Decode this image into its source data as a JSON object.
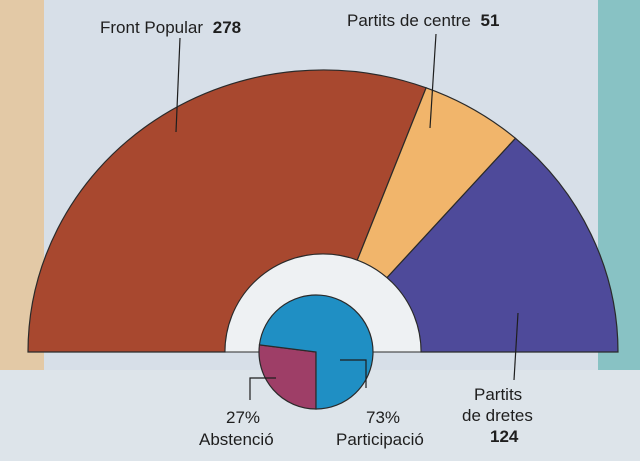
{
  "chart_data": [
    {
      "type": "pie",
      "variant": "hemicycle",
      "categories": [
        "Front Popular",
        "Partits de centre",
        "Partits de dretes"
      ],
      "values": [
        278,
        51,
        124
      ],
      "value_labels": [
        "278",
        "51",
        "124"
      ],
      "colors": [
        "#a8482f",
        "#f1b56b",
        "#4e4a9a"
      ],
      "title": "",
      "legend": "labels-callout"
    },
    {
      "type": "pie",
      "categories": [
        "Abstenció",
        "Participació"
      ],
      "values": [
        27,
        73
      ],
      "value_labels": [
        "27%",
        "73%"
      ],
      "colors": [
        "#9e3e67",
        "#1f8fc4"
      ],
      "title": "",
      "legend": "labels-callout"
    }
  ]
}
